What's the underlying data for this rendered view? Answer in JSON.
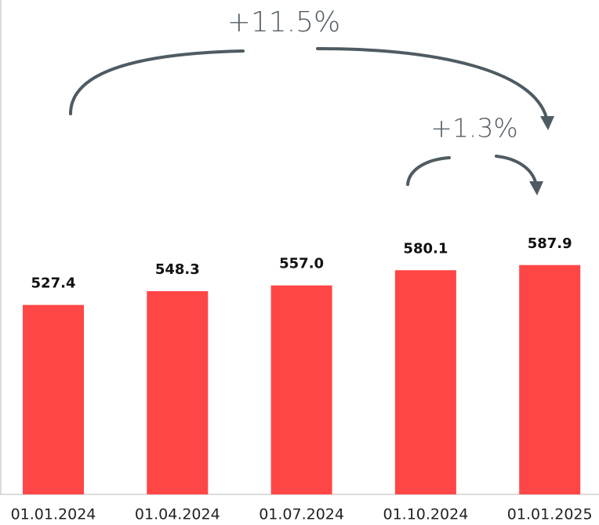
{
  "chart_data": {
    "type": "bar",
    "categories": [
      "01.01.2024",
      "01.04.2024",
      "01.07.2024",
      "01.10.2024",
      "01.01.2025"
    ],
    "values": [
      527.4,
      548.3,
      557.0,
      580.1,
      587.9
    ],
    "value_labels": [
      "527.4",
      "548.3",
      "557.0",
      "580.1",
      "587.9"
    ],
    "color": "#ff4646",
    "ylim": [
      240,
      990
    ],
    "annotations": [
      "+11.5%",
      "+1.3%"
    ]
  }
}
